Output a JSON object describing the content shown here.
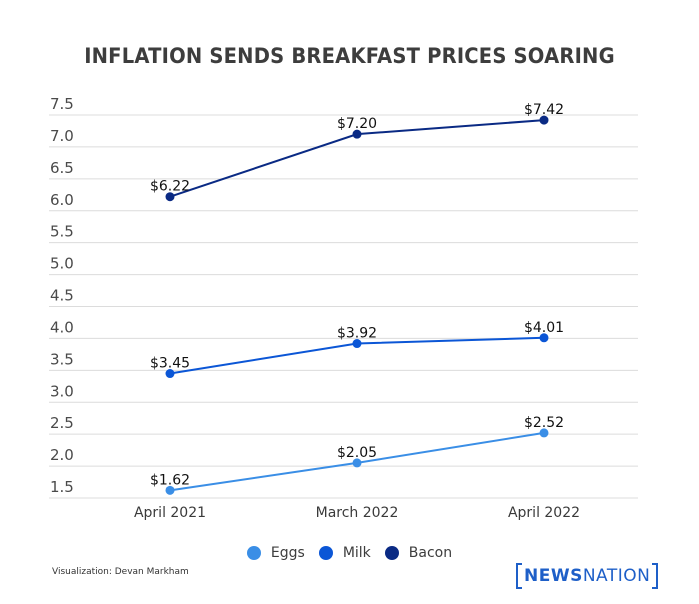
{
  "chart_data": {
    "type": "line",
    "title": "INFLATION SENDS BREAKFAST PRICES SOARING",
    "xlabel": "",
    "ylabel": "",
    "categories": [
      "April 2021",
      "March 2022",
      "April 2022"
    ],
    "ylim": [
      1.5,
      7.5
    ],
    "yticks": [
      "7.5",
      "7.0",
      "6.5",
      "6.0",
      "5.5",
      "5.0",
      "4.5",
      "4.0",
      "3.5",
      "3.0",
      "2.5",
      "2.0",
      "1.5"
    ],
    "ytick_values": [
      7.5,
      7.0,
      6.5,
      6.0,
      5.5,
      5.0,
      4.5,
      4.0,
      3.5,
      3.0,
      2.5,
      2.0,
      1.5
    ],
    "grid": true,
    "legend_position": "bottom-center",
    "series": [
      {
        "name": "Eggs",
        "color": "#3a8ee6",
        "values": [
          1.62,
          2.05,
          2.52
        ],
        "labels": [
          "$1.62",
          "$2.05",
          "$2.52"
        ]
      },
      {
        "name": "Milk",
        "color": "#0b56d6",
        "values": [
          3.45,
          3.92,
          4.01
        ],
        "labels": [
          "$3.45",
          "$3.92",
          "$4.01"
        ]
      },
      {
        "name": "Bacon",
        "color": "#0a2a84",
        "values": [
          6.22,
          7.2,
          7.42
        ],
        "labels": [
          "$6.22",
          "$7.20",
          "$7.42"
        ]
      }
    ]
  },
  "footer": {
    "credit": "Visualization: Devan Markham",
    "logo_part1": "NEWS",
    "logo_part2": "NATION"
  }
}
